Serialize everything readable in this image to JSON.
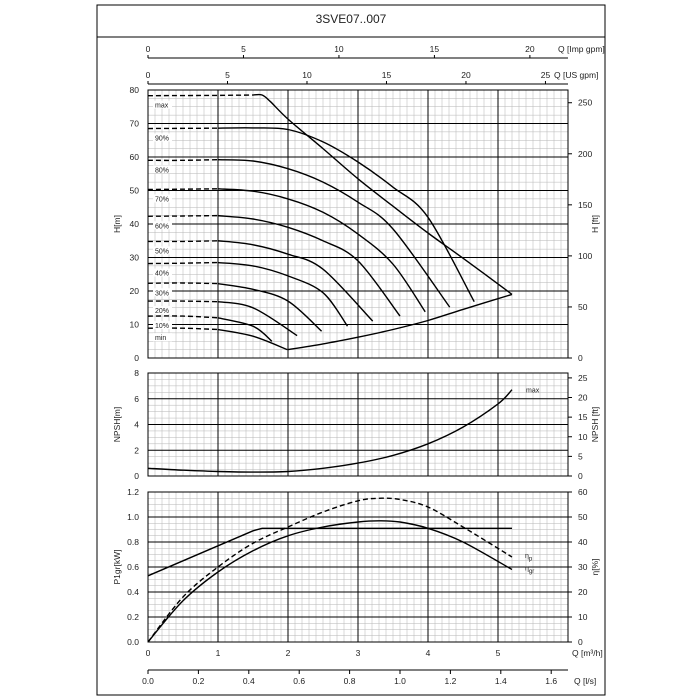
{
  "page": {
    "title": "3SVE07..007"
  },
  "axes": {
    "q_imp": {
      "label": "Q [Imp gpm]",
      "ticks": [
        "0",
        "5",
        "10",
        "15",
        "20"
      ]
    },
    "q_us": {
      "label": "Q [US gpm]",
      "ticks": [
        "0",
        "5",
        "10",
        "15",
        "20",
        "25"
      ]
    },
    "q_m3h": {
      "label": "Q [m³/h]",
      "ticks": [
        "0",
        "1",
        "2",
        "3",
        "4",
        "5"
      ]
    },
    "q_ls": {
      "label": "Q [l/s]",
      "ticks": [
        "0.0",
        "0.2",
        "0.4",
        "0.6",
        "0.8",
        "1.0",
        "1.2",
        "1.4",
        "1.6"
      ]
    },
    "h_m": {
      "label": "H[m]",
      "ticks": [
        "0",
        "10",
        "20",
        "30",
        "40",
        "50",
        "60",
        "70",
        "80"
      ]
    },
    "h_ft": {
      "label": "H [ft]",
      "ticks": [
        "0",
        "50",
        "100",
        "150",
        "200",
        "250"
      ]
    },
    "npsh_m": {
      "label": "NPSH[m]",
      "ticks": [
        "0",
        "2",
        "4",
        "6",
        "8"
      ]
    },
    "npsh_ft": {
      "label": "NPSH [ft]",
      "ticks": [
        "0",
        "5",
        "10",
        "15",
        "20",
        "25"
      ]
    },
    "p_kw": {
      "label": "P1gr[kW]",
      "ticks": [
        "0.0",
        "0.2",
        "0.4",
        "0.6",
        "0.8",
        "1.0",
        "1.2"
      ]
    },
    "eta": {
      "label": "η[%]",
      "ticks": [
        "0",
        "10",
        "20",
        "30",
        "40",
        "50",
        "60"
      ]
    }
  },
  "chart_data": [
    {
      "type": "line",
      "title": "3SVE07..007",
      "xlabel": "Q [m³/h]",
      "ylabel": "H[m]",
      "y2label": "H [ft]",
      "xlim": [
        0,
        6
      ],
      "ylim": [
        0,
        80
      ],
      "grid": true,
      "curve_labels": [
        "max",
        "90%",
        "80%",
        "70%",
        "60%",
        "50%",
        "40%",
        "30%",
        "20%",
        "10%",
        "min"
      ],
      "series": [
        {
          "name": "max",
          "x": [
            0,
            1,
            1.5,
            1.63,
            1.75,
            2.0,
            2.5,
            3.0,
            3.5,
            4.0,
            4.5,
            5.2
          ],
          "y": [
            78.3,
            78.4,
            78.5,
            78.5,
            76.5,
            71.3,
            62.5,
            53.5,
            45.3,
            37.3,
            29.8,
            19.0
          ]
        },
        {
          "name": "90%",
          "x": [
            0,
            1,
            1.5,
            2.0,
            2.5,
            3.0,
            3.5,
            4.0,
            4.66
          ],
          "y": [
            68.5,
            68.6,
            68.7,
            68.2,
            64.5,
            58.5,
            51.0,
            42.0,
            16.8
          ]
        },
        {
          "name": "80%",
          "x": [
            0,
            0.5,
            1.0,
            1.5,
            2.0,
            2.5,
            3.0,
            3.5,
            4.31
          ],
          "y": [
            59.0,
            59.0,
            59.2,
            58.8,
            56.5,
            52.5,
            46.5,
            38.5,
            15.2
          ]
        },
        {
          "name": "70%",
          "x": [
            0,
            0.5,
            1.0,
            1.5,
            2.0,
            2.5,
            3.0,
            3.5,
            3.96
          ],
          "y": [
            50.3,
            50.4,
            50.5,
            49.8,
            47.5,
            43.5,
            37.0,
            28.0,
            13.8
          ]
        },
        {
          "name": "60%",
          "x": [
            0,
            0.5,
            1.0,
            1.5,
            2.0,
            2.5,
            3.0,
            3.6
          ],
          "y": [
            42.3,
            42.4,
            42.5,
            41.5,
            39.0,
            35.0,
            29.0,
            12.5
          ]
        },
        {
          "name": "50%",
          "x": [
            0,
            0.5,
            1.0,
            1.5,
            2.0,
            2.5,
            3.21
          ],
          "y": [
            34.8,
            34.8,
            35.0,
            33.8,
            31.0,
            26.5,
            11.0
          ]
        },
        {
          "name": "40%",
          "x": [
            0,
            0.5,
            1.0,
            1.5,
            2.0,
            2.5,
            2.85
          ],
          "y": [
            28.2,
            28.3,
            28.5,
            27.5,
            24.5,
            19.5,
            9.5
          ]
        },
        {
          "name": "30%",
          "x": [
            0,
            0.5,
            1.0,
            1.5,
            2.0,
            2.48
          ],
          "y": [
            22.3,
            22.4,
            22.2,
            20.5,
            17.0,
            8.0
          ]
        },
        {
          "name": "20%",
          "x": [
            0,
            0.5,
            1.0,
            1.5,
            2.13
          ],
          "y": [
            17.0,
            17.0,
            16.8,
            15.0,
            6.7
          ]
        },
        {
          "name": "10%",
          "x": [
            0,
            0.5,
            1.0,
            1.5,
            1.77
          ],
          "y": [
            12.5,
            12.5,
            12.0,
            9.5,
            5.0
          ]
        },
        {
          "name": "min",
          "x": [
            0,
            0.5,
            1.0,
            1.5,
            1.99
          ],
          "y": [
            8.9,
            8.9,
            8.5,
            6.5,
            2.5
          ]
        },
        {
          "name": "end-of-curve",
          "x": [
            1.99,
            2.5,
            3.0,
            3.5,
            4.0,
            4.5,
            5.2
          ],
          "y": [
            2.5,
            4.2,
            6.2,
            8.5,
            11.2,
            14.5,
            19.0
          ]
        }
      ]
    },
    {
      "type": "line",
      "xlabel": "Q [m³/h]",
      "ylabel": "NPSH[m]",
      "y2label": "NPSH [ft]",
      "xlim": [
        0,
        6
      ],
      "ylim": [
        0,
        8
      ],
      "grid": true,
      "series": [
        {
          "name": "max",
          "x": [
            0,
            0.5,
            1.0,
            1.5,
            2.0,
            2.5,
            3.0,
            3.5,
            4.0,
            4.5,
            5.0,
            5.2
          ],
          "y": [
            0.6,
            0.45,
            0.35,
            0.3,
            0.35,
            0.6,
            1.0,
            1.6,
            2.5,
            3.8,
            5.6,
            6.7
          ]
        }
      ]
    },
    {
      "type": "line",
      "xlabel": "Q [m³/h]",
      "ylabel": "P1gr[kW]",
      "y2label": "η[%]",
      "xlim": [
        0,
        6
      ],
      "ylim": [
        0,
        1.2
      ],
      "y2lim": [
        0,
        60
      ],
      "grid": true,
      "series": [
        {
          "name": "P1gr",
          "axis": "left",
          "x": [
            0,
            0.5,
            1.0,
            1.5,
            1.63,
            2.0,
            2.5,
            3.0,
            3.5,
            4.0,
            4.5,
            5.2
          ],
          "y": [
            0.53,
            0.65,
            0.77,
            0.89,
            0.91,
            0.91,
            0.91,
            0.91,
            0.91,
            0.91,
            0.91,
            0.91
          ]
        },
        {
          "name": "ηp",
          "axis": "right",
          "x": [
            0,
            0.5,
            1.0,
            1.5,
            2.0,
            2.5,
            3.0,
            3.3,
            3.6,
            4.0,
            4.5,
            5.2
          ],
          "y": [
            0,
            18,
            30,
            39.5,
            46,
            52,
            56.5,
            57.5,
            57,
            54,
            46,
            34
          ]
        },
        {
          "name": "ηgr",
          "axis": "right",
          "x": [
            0,
            0.5,
            1.0,
            1.5,
            2.0,
            2.5,
            3.0,
            3.3,
            3.6,
            4.0,
            4.5,
            5.2
          ],
          "y": [
            0,
            16.5,
            28,
            36.5,
            42.5,
            46,
            48,
            48.5,
            48,
            45.5,
            40,
            29
          ]
        }
      ]
    }
  ]
}
